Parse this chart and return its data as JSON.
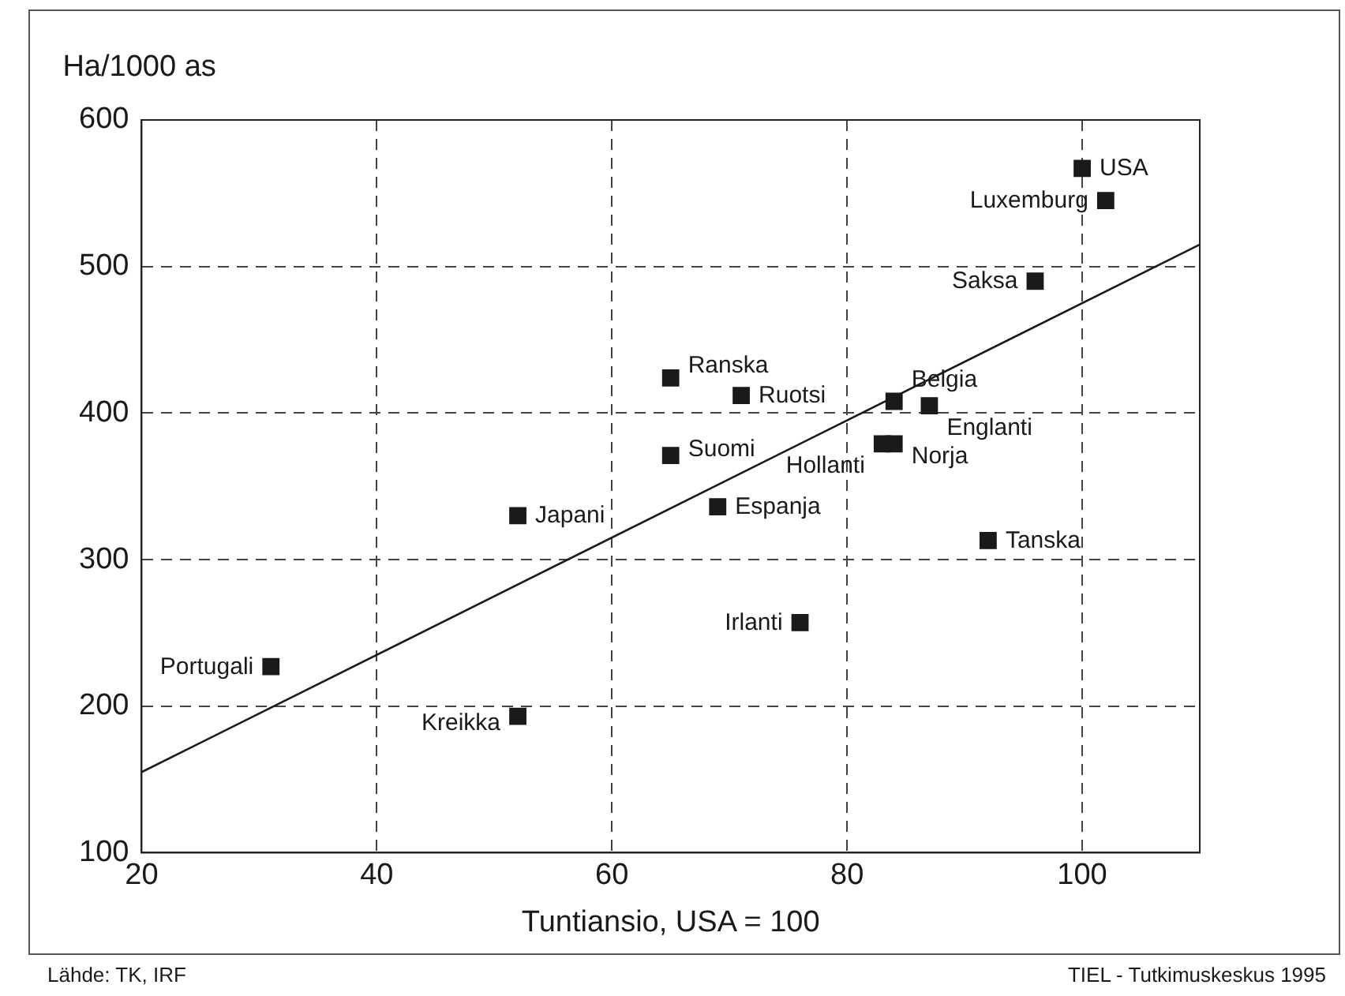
{
  "chart_data": {
    "type": "scatter",
    "ylabel": "Ha/1000 as",
    "xlabel": "Tuntiansio, USA = 100",
    "xlim": [
      20,
      110
    ],
    "xticks": [
      20,
      40,
      60,
      80,
      100
    ],
    "ylim": [
      100,
      600
    ],
    "yticks": [
      100,
      200,
      300,
      400,
      500,
      600
    ],
    "grid": true,
    "legend": false,
    "series": [
      {
        "color": "#1a1a1a",
        "marker": "square",
        "x": [
          100,
          102,
          96,
          65,
          71,
          84,
          87,
          84,
          83,
          65,
          52,
          69,
          92,
          76,
          31,
          52
        ],
        "values": [
          567,
          545,
          490,
          424,
          412,
          408,
          405,
          379,
          379,
          371,
          330,
          336,
          313,
          257,
          227,
          193
        ]
      },
      {
        "type": "line",
        "color": "#1a1a1a",
        "x": [
          20,
          110
        ],
        "values": [
          155,
          515
        ]
      }
    ],
    "annotations": [
      {
        "text": "USA",
        "x": 100,
        "y": 567
      },
      {
        "text": "Luxemburg",
        "x": 102,
        "y": 545
      },
      {
        "text": "Saksa",
        "x": 96,
        "y": 490
      },
      {
        "text": "Ranska",
        "x": 65,
        "y": 424
      },
      {
        "text": "Ruotsi",
        "x": 71,
        "y": 412
      },
      {
        "text": "Belgia",
        "x": 84,
        "y": 408
      },
      {
        "text": "Englanti",
        "x": 87,
        "y": 405
      },
      {
        "text": "Norja",
        "x": 84,
        "y": 379
      },
      {
        "text": "Hollanti",
        "x": 83,
        "y": 379
      },
      {
        "text": "Suomi",
        "x": 65,
        "y": 371
      },
      {
        "text": "Japani",
        "x": 52,
        "y": 330
      },
      {
        "text": "Espanja",
        "x": 69,
        "y": 336
      },
      {
        "text": "Tanska",
        "x": 92,
        "y": 313
      },
      {
        "text": "Irlanti",
        "x": 76,
        "y": 257
      },
      {
        "text": "Portugali",
        "x": 31,
        "y": 227
      },
      {
        "text": "Kreikka",
        "x": 52,
        "y": 193
      },
      "Lähde: TK, IRF",
      "TIEL - Tutkimuskeskus 1995"
    ]
  }
}
